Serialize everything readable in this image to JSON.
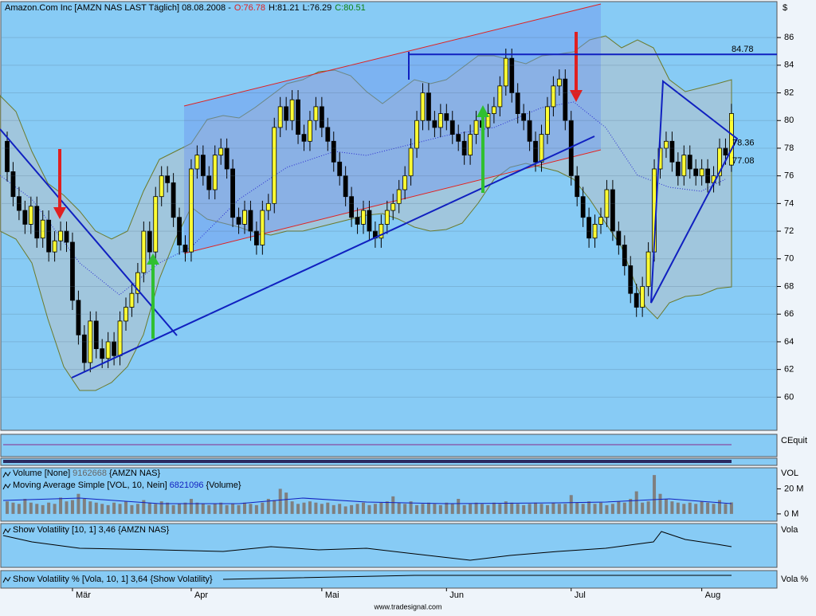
{
  "chart_data": [
    {
      "type": "candlestick",
      "title": "Amazon.Com Inc [AMZN NAS LAST Täglich] 08.08.2008 -",
      "ohlc_labels": [
        "O:76.78",
        "H:81.21",
        "L:76.29",
        "C:80.51"
      ],
      "y_axis_label": "$",
      "up_color": "#ffff33",
      "down_color": "#000000",
      "categories": [
        null,
        null,
        null,
        null,
        null,
        null,
        null,
        null,
        null,
        null,
        null,
        "Mär",
        null,
        null,
        null,
        null,
        null,
        null,
        null,
        null,
        null,
        null,
        null,
        null,
        null,
        null,
        null,
        null,
        null,
        null,
        null,
        "Apr",
        null,
        null,
        null,
        null,
        null,
        null,
        null,
        null,
        null,
        null,
        null,
        null,
        null,
        null,
        null,
        null,
        null,
        null,
        null,
        null,
        null,
        "Mai",
        null,
        null,
        null,
        null,
        null,
        null,
        null,
        null,
        null,
        null,
        null,
        null,
        null,
        null,
        null,
        null,
        null,
        null,
        null,
        null,
        "Jun",
        null,
        null,
        null,
        null,
        null,
        null,
        null,
        null,
        null,
        null,
        null,
        null,
        null,
        null,
        null,
        null,
        null,
        null,
        null,
        null,
        "Jul",
        null,
        null,
        null,
        null,
        null,
        null,
        null,
        null,
        null,
        null,
        null,
        null,
        null,
        null,
        null,
        null,
        null,
        null,
        null,
        null,
        null,
        "Aug",
        null,
        null,
        null,
        null,
        null
      ],
      "open": [
        78.5,
        76.3,
        74.5,
        73.5,
        72.5,
        73.8,
        71.5,
        72.8,
        70.5,
        71.3,
        72.0,
        71.2,
        67.0,
        64.5,
        62.5,
        65.5,
        63.5,
        62.8,
        64.0,
        63.0,
        65.5,
        66.5,
        67.5,
        69.0,
        72.0,
        70.5,
        74.5,
        76.0,
        75.5,
        73.0,
        71.0,
        70.5,
        76.5,
        77.5,
        76.0,
        75.0,
        77.5,
        78.0,
        76.5,
        73.0,
        72.5,
        73.5,
        72.0,
        71.0,
        73.5,
        74.0,
        79.5,
        81.0,
        80.0,
        81.5,
        79.0,
        78.5,
        80.0,
        81.0,
        79.5,
        78.5,
        77.0,
        76.0,
        74.5,
        73.0,
        72.5,
        73.5,
        72.0,
        71.5,
        72.5,
        73.5,
        74.0,
        75.0,
        76.0,
        78.0,
        80.0,
        82.0,
        80.0,
        79.5,
        80.5,
        80.0,
        79.0,
        78.5,
        77.5,
        79.0,
        80.0,
        79.5,
        80.5,
        81.0,
        82.5,
        84.5,
        82.0,
        80.5,
        80.0,
        78.5,
        77.0,
        79.0,
        81.0,
        82.5,
        83.0,
        80.0,
        76.0,
        74.5,
        73.0,
        71.5,
        72.5,
        73.0,
        75.0,
        72.0,
        71.0,
        69.5,
        67.5,
        66.5,
        68.0,
        70.5,
        76.5,
        78.0,
        78.5,
        77.0,
        76.0,
        77.5,
        76.5,
        76.0,
        76.5,
        75.5,
        76.0,
        78.0,
        76.78
      ],
      "high": [
        79.2,
        77.0,
        75.2,
        74.2,
        74.5,
        74.5,
        73.5,
        73.5,
        72.0,
        72.7,
        72.7,
        71.9,
        67.7,
        65.2,
        66.2,
        66.2,
        64.2,
        64.7,
        64.7,
        66.2,
        67.2,
        68.2,
        69.7,
        72.7,
        72.7,
        75.2,
        76.7,
        76.7,
        76.2,
        73.7,
        71.7,
        77.2,
        78.2,
        78.2,
        76.7,
        78.2,
        78.7,
        78.7,
        77.2,
        73.7,
        74.2,
        74.2,
        72.7,
        74.2,
        74.7,
        80.2,
        81.7,
        81.7,
        82.2,
        82.2,
        79.7,
        80.7,
        81.7,
        81.7,
        80.2,
        79.2,
        77.7,
        76.7,
        75.2,
        73.7,
        74.2,
        74.2,
        72.7,
        73.2,
        74.2,
        74.7,
        75.7,
        76.7,
        78.7,
        80.7,
        82.7,
        82.7,
        80.7,
        81.2,
        81.2,
        80.7,
        79.7,
        79.2,
        79.7,
        80.7,
        80.7,
        81.2,
        81.7,
        83.2,
        85.2,
        85.2,
        82.7,
        81.2,
        80.7,
        79.2,
        79.7,
        81.7,
        83.2,
        83.7,
        83.7,
        80.7,
        76.7,
        75.2,
        73.7,
        73.2,
        73.7,
        75.7,
        75.7,
        72.7,
        71.7,
        70.2,
        68.2,
        68.7,
        71.2,
        77.2,
        78.7,
        79.2,
        79.2,
        77.7,
        78.2,
        78.2,
        77.2,
        77.2,
        77.2,
        76.7,
        78.7,
        78.7,
        81.21
      ],
      "low": [
        75.6,
        73.8,
        72.8,
        71.8,
        71.8,
        70.8,
        70.8,
        69.8,
        69.8,
        70.6,
        70.5,
        66.3,
        63.8,
        61.8,
        61.8,
        62.8,
        62.1,
        62.1,
        62.3,
        62.3,
        64.8,
        65.8,
        66.8,
        68.3,
        69.8,
        69.8,
        73.8,
        74.8,
        72.3,
        70.3,
        69.8,
        69.8,
        75.8,
        75.3,
        74.3,
        74.3,
        76.8,
        75.8,
        72.3,
        71.8,
        71.8,
        71.3,
        70.3,
        70.3,
        72.8,
        73.3,
        78.8,
        79.3,
        79.3,
        78.3,
        77.8,
        77.8,
        79.3,
        78.8,
        77.8,
        76.3,
        75.3,
        73.8,
        72.3,
        71.8,
        71.8,
        71.3,
        70.8,
        70.8,
        71.8,
        72.8,
        73.3,
        74.3,
        75.3,
        77.3,
        79.3,
        79.3,
        78.8,
        78.8,
        79.3,
        78.3,
        77.8,
        76.8,
        76.8,
        78.3,
        78.8,
        78.8,
        79.8,
        80.3,
        81.8,
        81.3,
        79.8,
        79.3,
        77.8,
        76.3,
        76.3,
        78.3,
        80.3,
        81.8,
        79.3,
        75.3,
        73.8,
        72.3,
        70.8,
        70.8,
        71.8,
        72.3,
        71.3,
        70.3,
        68.8,
        66.8,
        65.8,
        65.8,
        67.3,
        69.8,
        75.8,
        77.3,
        76.3,
        75.3,
        75.3,
        75.8,
        75.3,
        75.3,
        74.8,
        74.8,
        75.3,
        76.8,
        76.29
      ],
      "close": [
        76.3,
        74.5,
        73.5,
        72.5,
        73.8,
        71.5,
        72.8,
        70.5,
        71.3,
        72.0,
        71.2,
        67.0,
        64.5,
        62.5,
        65.5,
        63.5,
        62.8,
        64.0,
        63.0,
        65.5,
        66.5,
        67.5,
        69.0,
        72.0,
        70.5,
        74.5,
        76.0,
        75.5,
        73.0,
        71.0,
        70.5,
        76.5,
        77.5,
        76.0,
        75.0,
        77.5,
        78.0,
        76.5,
        73.0,
        72.5,
        73.5,
        72.0,
        71.0,
        73.5,
        74.0,
        79.5,
        81.0,
        80.0,
        81.5,
        79.0,
        78.5,
        80.0,
        81.0,
        79.5,
        78.5,
        77.0,
        76.0,
        74.5,
        73.0,
        72.5,
        73.5,
        72.0,
        71.5,
        72.5,
        73.5,
        74.0,
        75.0,
        76.0,
        78.0,
        80.0,
        82.0,
        80.0,
        79.5,
        80.5,
        80.0,
        79.0,
        78.5,
        77.5,
        79.0,
        80.0,
        79.5,
        80.5,
        81.0,
        82.5,
        84.5,
        82.0,
        80.5,
        80.0,
        78.5,
        77.0,
        79.0,
        81.0,
        82.5,
        83.0,
        80.0,
        76.0,
        74.5,
        73.0,
        71.5,
        72.5,
        73.0,
        75.0,
        72.0,
        71.0,
        69.5,
        67.5,
        66.5,
        68.0,
        70.5,
        76.5,
        78.0,
        78.5,
        77.0,
        76.0,
        77.5,
        76.5,
        76.0,
        76.5,
        75.5,
        76.0,
        78.0,
        77.5,
        80.51
      ],
      "levels": [
        84.78,
        78.36,
        77.08
      ],
      "ylim": [
        57.6,
        88.6
      ],
      "yticks": [
        60,
        62,
        64,
        66,
        68,
        70,
        72,
        74,
        76,
        78,
        80,
        82,
        84,
        86
      ]
    },
    {
      "type": "bar",
      "legend_rows": [
        [
          "Volume [None]",
          "9162668",
          "{AMZN NAS}"
        ],
        [
          "Moving Average Simple [VOL, 10, Nein]",
          "6821096",
          "{Volume}"
        ]
      ],
      "y_axis_label": "VOL",
      "color": "#7f7f7f",
      "values": [
        10,
        9,
        8,
        12,
        9,
        8,
        7,
        9,
        8,
        13,
        10,
        11,
        16,
        12,
        10,
        9,
        8,
        7,
        9,
        8,
        10,
        7,
        8,
        11,
        9,
        8,
        10,
        9,
        7,
        8,
        9,
        12,
        9,
        8,
        7,
        8,
        9,
        7,
        8,
        7,
        9,
        8,
        7,
        9,
        12,
        11,
        20,
        17,
        10,
        8,
        9,
        10,
        9,
        8,
        9,
        7,
        8,
        6,
        7,
        8,
        9,
        7,
        8,
        9,
        10,
        14,
        9,
        8,
        10,
        7,
        8,
        9,
        8,
        7,
        9,
        8,
        12,
        7,
        8,
        9,
        8,
        7,
        9,
        8,
        10,
        9,
        8,
        7,
        8,
        9,
        8,
        7,
        9,
        8,
        8,
        15,
        9,
        8,
        10,
        8,
        9,
        7,
        8,
        10,
        9,
        12,
        18,
        9,
        10,
        31,
        16,
        12,
        10,
        9,
        8,
        9,
        8,
        10,
        9,
        8,
        11,
        8,
        9.162668
      ],
      "ylim": [
        -5.8,
        36.8
      ],
      "yticks": [
        {
          "value": 20,
          "label": "20 M"
        },
        {
          "value": 0,
          "label": "0 M"
        }
      ]
    }
  ],
  "indicators": {
    "equity_label": "CEquit",
    "vola_legend": "Show Volatility [10, 1] 3,46 {AMZN NAS}",
    "vola_axis": "Vola",
    "volap_legend": "Show Volatility % [Vola, 10, 1] 3,64 {Show Volatility}",
    "volap_axis": "Vola %"
  },
  "footer": "www.tradesignal.com"
}
